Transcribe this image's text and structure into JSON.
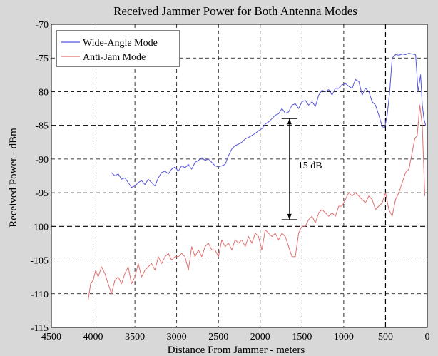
{
  "chart_data": {
    "type": "line",
    "title": "Received Jammer Power for Both Antenna Modes",
    "xlabel": "Distance From Jammer - meters",
    "ylabel": "Received Power - dBm",
    "xlim": [
      4500,
      0
    ],
    "ylim": [
      -115,
      -70
    ],
    "x_reversed": true,
    "xticks": [
      4500,
      4000,
      3500,
      3000,
      2500,
      2000,
      1500,
      1000,
      500,
      0
    ],
    "yticks": [
      -70,
      -75,
      -80,
      -85,
      -90,
      -95,
      -100,
      -105,
      -110,
      -115
    ],
    "grid": true,
    "emphasized_gridlines": {
      "x": [
        500
      ],
      "y": [
        -85,
        -100
      ]
    },
    "legend_position": "top-left",
    "series": [
      {
        "name": "Wide-Angle Mode",
        "color": "#5555dd",
        "x": [
          3780,
          3740,
          3700,
          3660,
          3620,
          3580,
          3540,
          3500,
          3460,
          3420,
          3380,
          3340,
          3300,
          3260,
          3220,
          3180,
          3140,
          3100,
          3060,
          3020,
          2980,
          2940,
          2900,
          2860,
          2820,
          2780,
          2740,
          2700,
          2660,
          2620,
          2580,
          2540,
          2500,
          2460,
          2420,
          2380,
          2340,
          2300,
          2260,
          2220,
          2180,
          2140,
          2100,
          2060,
          2020,
          1980,
          1940,
          1900,
          1860,
          1820,
          1780,
          1740,
          1700,
          1660,
          1620,
          1580,
          1540,
          1500,
          1460,
          1420,
          1380,
          1340,
          1300,
          1260,
          1220,
          1180,
          1140,
          1100,
          1060,
          1020,
          980,
          940,
          900,
          860,
          820,
          780,
          740,
          700,
          660,
          620,
          580,
          540,
          510,
          480,
          450,
          420,
          380,
          340,
          300,
          260,
          220,
          180,
          140,
          110,
          80,
          60,
          40,
          20
        ],
        "values": [
          -92.0,
          -92.5,
          -92.2,
          -93.0,
          -92.8,
          -93.5,
          -94.2,
          -94.0,
          -93.5,
          -93.2,
          -93.8,
          -93.0,
          -93.5,
          -94.0,
          -92.8,
          -92.0,
          -91.8,
          -92.2,
          -91.5,
          -91.2,
          -91.8,
          -91.0,
          -91.3,
          -90.8,
          -91.5,
          -90.5,
          -90.2,
          -89.8,
          -90.2,
          -90.0,
          -90.5,
          -91.0,
          -91.2,
          -91.0,
          -90.8,
          -89.5,
          -88.5,
          -88.0,
          -87.8,
          -87.5,
          -87.0,
          -86.8,
          -86.5,
          -86.2,
          -85.8,
          -85.5,
          -84.8,
          -84.5,
          -84.0,
          -83.5,
          -83.3,
          -82.5,
          -83.2,
          -83.0,
          -82.0,
          -81.8,
          -82.5,
          -81.5,
          -81.3,
          -82.0,
          -81.5,
          -82.2,
          -80.5,
          -79.8,
          -80.0,
          -79.7,
          -80.5,
          -79.5,
          -79.5,
          -79.0,
          -78.8,
          -79.2,
          -79.5,
          -78.2,
          -78.5,
          -80.5,
          -79.5,
          -80.0,
          -81.5,
          -82.0,
          -83.5,
          -85.2,
          -85.3,
          -83.5,
          -80.0,
          -75.0,
          -74.5,
          -74.6,
          -74.4,
          -74.5,
          -74.3,
          -74.4,
          -74.5,
          -80.0,
          -77.5,
          -82.0,
          -84.0,
          -85.0
        ]
      },
      {
        "name": "Anti-Jam Mode",
        "color": "#e07070",
        "x": [
          4060,
          4030,
          4000,
          3970,
          3940,
          3900,
          3860,
          3820,
          3780,
          3740,
          3700,
          3660,
          3620,
          3580,
          3540,
          3500,
          3460,
          3420,
          3380,
          3340,
          3300,
          3260,
          3220,
          3180,
          3140,
          3100,
          3060,
          3020,
          2980,
          2940,
          2900,
          2860,
          2820,
          2780,
          2740,
          2700,
          2660,
          2620,
          2580,
          2540,
          2500,
          2460,
          2420,
          2380,
          2340,
          2300,
          2260,
          2220,
          2180,
          2140,
          2100,
          2060,
          2020,
          1980,
          1940,
          1900,
          1860,
          1820,
          1780,
          1740,
          1700,
          1660,
          1620,
          1580,
          1540,
          1500,
          1460,
          1420,
          1380,
          1340,
          1300,
          1260,
          1220,
          1180,
          1140,
          1100,
          1060,
          1020,
          980,
          940,
          900,
          860,
          820,
          780,
          740,
          700,
          660,
          620,
          580,
          540,
          500,
          460,
          420,
          380,
          340,
          300,
          260,
          220,
          180,
          150,
          120,
          90,
          60,
          30
        ],
        "values": [
          -111.0,
          -108.5,
          -108.0,
          -106.5,
          -107.5,
          -106.0,
          -107.0,
          -108.5,
          -110.0,
          -108.0,
          -107.5,
          -108.5,
          -107.0,
          -106.0,
          -108.5,
          -107.5,
          -105.5,
          -107.5,
          -106.5,
          -106.0,
          -105.5,
          -106.5,
          -104.5,
          -105.5,
          -104.5,
          -104.0,
          -105.0,
          -104.5,
          -104.5,
          -104.0,
          -104.5,
          -106.5,
          -103.0,
          -104.5,
          -103.5,
          -104.5,
          -103.0,
          -102.5,
          -103.5,
          -103.5,
          -104.5,
          -102.0,
          -103.0,
          -102.5,
          -103.5,
          -102.0,
          -102.5,
          -102.0,
          -103.0,
          -101.5,
          -102.5,
          -101.0,
          -101.5,
          -103.5,
          -100.5,
          -101.0,
          -101.5,
          -101.0,
          -102.0,
          -101.0,
          -101.5,
          -103.0,
          -104.5,
          -104.5,
          -101.0,
          -100.0,
          -100.0,
          -99.0,
          -98.5,
          -99.5,
          -98.0,
          -97.5,
          -98.0,
          -98.5,
          -98.0,
          -98.5,
          -97.0,
          -97.0,
          -96.0,
          -95.0,
          -95.5,
          -95.0,
          -95.5,
          -96.0,
          -96.5,
          -95.5,
          -96.0,
          -97.5,
          -97.0,
          -96.5,
          -95.0,
          -97.5,
          -98.5,
          -96.0,
          -95.0,
          -93.5,
          -92.0,
          -91.5,
          -89.0,
          -87.0,
          -86.5,
          -82.0,
          -85.0,
          -95.5
        ]
      }
    ],
    "annotations": [
      {
        "text": "15 dB",
        "type": "double-arrow",
        "x": 1650,
        "y_from": -84,
        "y_to": -99
      }
    ]
  }
}
